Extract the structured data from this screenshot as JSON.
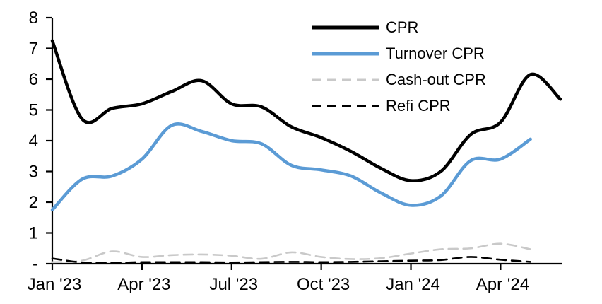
{
  "chart_data": {
    "type": "line",
    "title": "",
    "xlabel": "",
    "ylabel": "",
    "grid": false,
    "legend_position": "inside-top-right",
    "background_color": "#ffffff",
    "axis_color": "#000000",
    "ylim": [
      0,
      8
    ],
    "y_tick_labels": [
      "8",
      "7",
      "6",
      "5",
      "4",
      "3",
      "2",
      "1",
      "-"
    ],
    "y_tick_values": [
      8,
      7,
      6,
      5,
      4,
      3,
      2,
      1,
      0
    ],
    "x_tick_labels": [
      "Jan '23",
      "Apr '23",
      "Jul '23",
      "Oct '23",
      "Jan '24",
      "Apr '24"
    ],
    "x_tick_indices": [
      0,
      3,
      6,
      9,
      12,
      15
    ],
    "months": [
      "Jan '23",
      "Feb '23",
      "Mar '23",
      "Apr '23",
      "May '23",
      "Jun '23",
      "Jul '23",
      "Aug '23",
      "Sep '23",
      "Oct '23",
      "Nov '23",
      "Dec '23",
      "Jan '24",
      "Feb '24",
      "Mar '24",
      "Apr '24",
      "May '24",
      "Jun '24"
    ],
    "series": [
      {
        "name": "CPR",
        "color": "#000000",
        "style": "solid",
        "width": 4.5,
        "values": [
          7.25,
          4.7,
          5.05,
          5.2,
          5.6,
          5.95,
          5.2,
          5.1,
          4.45,
          4.1,
          3.65,
          3.1,
          2.7,
          3.0,
          4.2,
          4.6,
          6.15,
          5.35
        ]
      },
      {
        "name": "Turnover CPR",
        "color": "#5B9BD5",
        "style": "solid",
        "width": 4.5,
        "values": [
          1.75,
          2.75,
          2.85,
          3.4,
          4.5,
          4.3,
          4.0,
          3.9,
          3.2,
          3.05,
          2.85,
          2.3,
          1.9,
          2.2,
          3.35,
          3.4,
          4.05,
          null
        ]
      },
      {
        "name": "Cash-out CPR",
        "color": "#C9C9C9",
        "style": "dashed",
        "width": 2.6,
        "values": [
          0.05,
          0.1,
          0.4,
          0.22,
          0.28,
          0.3,
          0.26,
          0.16,
          0.37,
          0.22,
          0.15,
          0.18,
          0.33,
          0.47,
          0.5,
          0.65,
          0.47,
          null
        ]
      },
      {
        "name": "Refi CPR",
        "color": "#000000",
        "style": "dashed",
        "width": 2.6,
        "values": [
          0.17,
          0.04,
          0.03,
          0.05,
          0.05,
          0.05,
          0.04,
          0.05,
          0.06,
          0.05,
          0.06,
          0.08,
          0.1,
          0.12,
          0.22,
          0.13,
          0.06,
          null
        ]
      }
    ]
  }
}
